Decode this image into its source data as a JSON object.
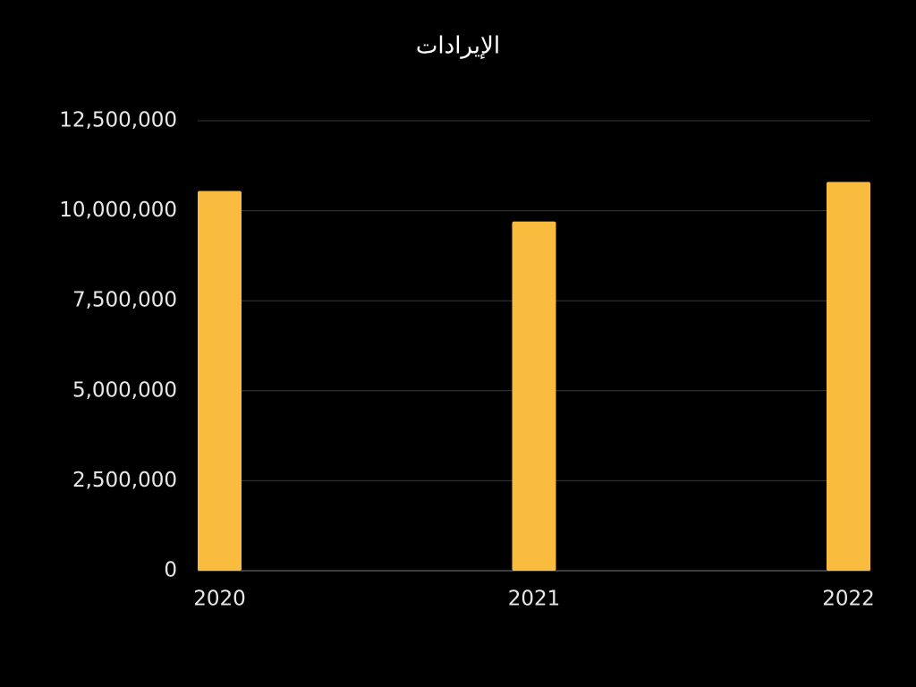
{
  "chart_data": {
    "type": "bar",
    "title": "الإيرادات",
    "categories": [
      "2020",
      "2021",
      "2022"
    ],
    "values": [
      10550000,
      9700000,
      10800000
    ],
    "color": "#f9bc3e",
    "ylim": [
      0,
      12500000
    ],
    "yticks": [
      0,
      {
        "value": 2500000,
        "label": "2,500,000"
      },
      {
        "value": 5000000,
        "label": "5,000,000"
      },
      {
        "value": 7500000,
        "label": "7,500,000"
      },
      {
        "value": 10000000,
        "label": "10,000,000"
      },
      {
        "value": 12500000,
        "label": "12,500,000"
      }
    ],
    "grid": true
  }
}
